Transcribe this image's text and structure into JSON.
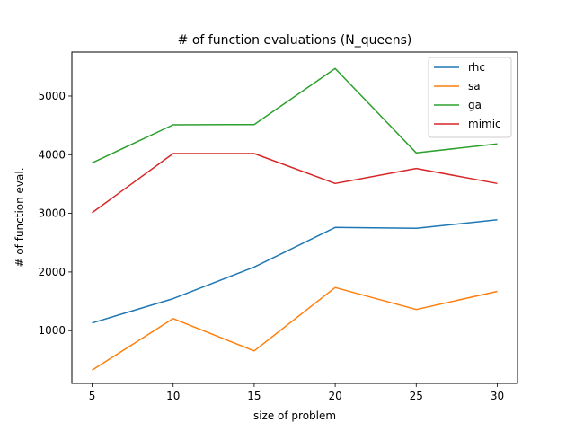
{
  "chart_data": {
    "type": "line",
    "title": "# of function evaluations (N_queens)",
    "xlabel": "size of problem",
    "ylabel": "# of function eval.",
    "x": [
      5,
      10,
      15,
      20,
      25,
      30
    ],
    "xticks": [
      "5",
      "10",
      "15",
      "20",
      "25",
      "30"
    ],
    "yticks": [
      "1000",
      "2000",
      "3000",
      "4000",
      "5000"
    ],
    "xlim": [
      3.75,
      31.25
    ],
    "ylim": [
      100,
      5750
    ],
    "grid": false,
    "legend_position": "top-right",
    "series": [
      {
        "name": "rhc",
        "color": "#1f77b4",
        "values": [
          1130,
          1545,
          2085,
          2760,
          2745,
          2890
        ]
      },
      {
        "name": "sa",
        "color": "#ff7f0e",
        "values": [
          325,
          1205,
          655,
          1735,
          1360,
          1670
        ]
      },
      {
        "name": "ga",
        "color": "#2ca02c",
        "values": [
          3860,
          4510,
          4515,
          5470,
          4030,
          4185
        ]
      },
      {
        "name": "mimic",
        "color": "#d62728",
        "values": [
          3010,
          4020,
          4020,
          3510,
          3765,
          3510
        ]
      }
    ]
  }
}
